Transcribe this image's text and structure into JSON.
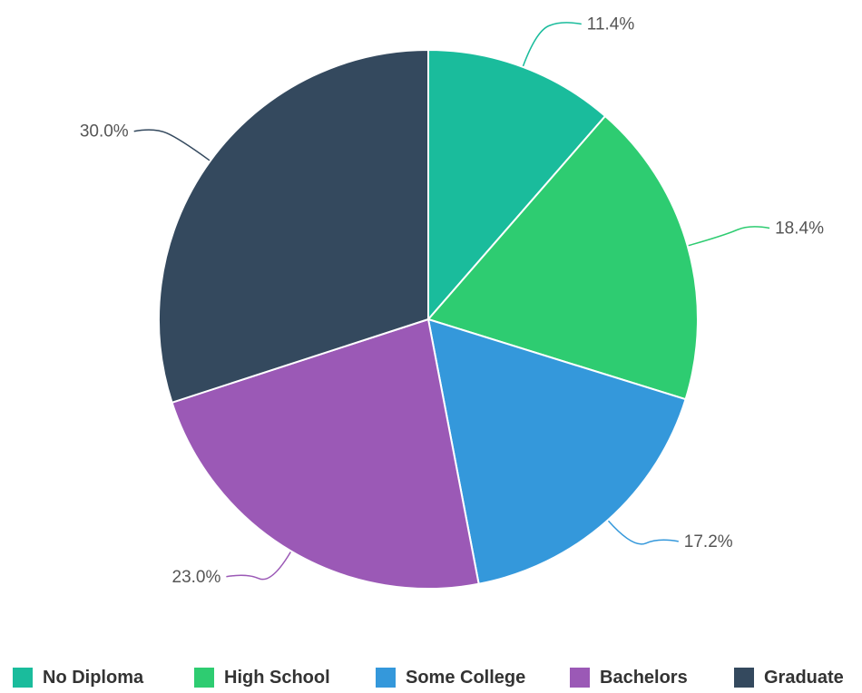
{
  "chart_data": {
    "type": "pie",
    "categories": [
      "No Diploma",
      "High School",
      "Some College",
      "Bachelors",
      "Graduate"
    ],
    "values": [
      11.4,
      18.4,
      17.2,
      23.0,
      30.0
    ],
    "data_labels": [
      "11.4%",
      "18.4%",
      "17.2%",
      "23.0%",
      "30.0%"
    ],
    "colors": [
      "#1abc9c",
      "#2ecc71",
      "#3498db",
      "#9b59b6",
      "#34495e"
    ],
    "start_angle": "12 o'clock",
    "direction": "clockwise",
    "legend_position": "bottom"
  }
}
